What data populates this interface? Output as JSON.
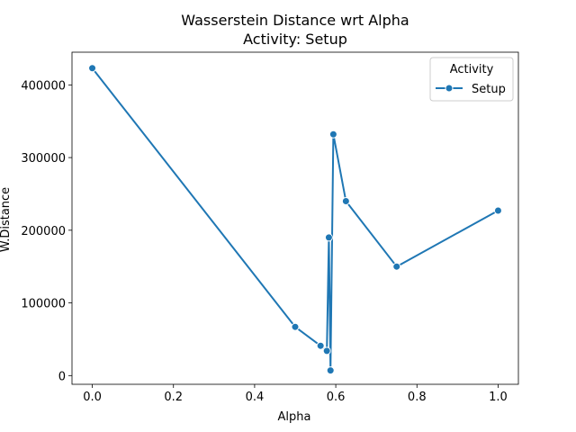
{
  "chart_data": {
    "type": "line",
    "title": "Wasserstein Distance wrt Alpha",
    "subtitle": "Activity: Setup",
    "xlabel": "Alpha",
    "ylabel": "W.Distance",
    "xlim": [
      -0.05,
      1.05
    ],
    "ylim": [
      -12000,
      445000
    ],
    "xticks": [
      0.0,
      0.2,
      0.4,
      0.6,
      0.8,
      1.0
    ],
    "xtick_labels": [
      "0.0",
      "0.2",
      "0.4",
      "0.6",
      "0.8",
      "1.0"
    ],
    "yticks": [
      0,
      100000,
      200000,
      300000,
      400000
    ],
    "ytick_labels": [
      "0",
      "100000",
      "200000",
      "300000",
      "400000"
    ],
    "grid": false,
    "legend": {
      "title": "Activity",
      "placement": "top-right"
    },
    "series": [
      {
        "name": "Setup",
        "color": "#1f77b4",
        "marker": "circle",
        "x": [
          0.0,
          0.5,
          0.5625,
          0.578,
          0.583,
          0.587,
          0.594,
          0.625,
          0.75,
          1.0
        ],
        "y": [
          423000,
          67000,
          41000,
          34000,
          190000,
          7000,
          332000,
          240000,
          150000,
          227000
        ]
      }
    ]
  }
}
